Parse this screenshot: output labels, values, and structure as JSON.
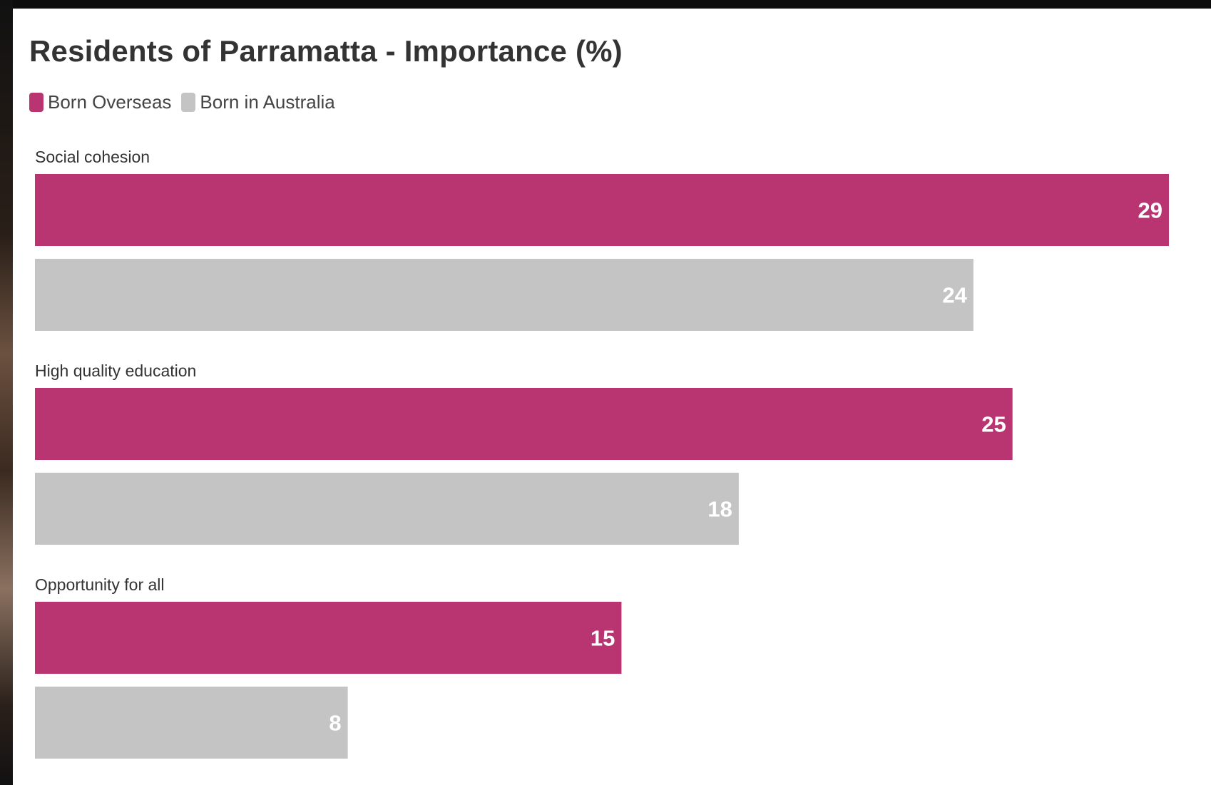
{
  "chart_data": {
    "type": "bar",
    "orientation": "horizontal",
    "title": "Residents of Parramatta - Importance (%)",
    "categories": [
      "Social cohesion",
      "High quality education",
      "Opportunity for all"
    ],
    "series": [
      {
        "name": "Born Overseas",
        "color": "#b83572",
        "values": [
          29,
          25,
          15
        ]
      },
      {
        "name": "Born in Australia",
        "color": "#c4c4c4",
        "values": [
          24,
          18,
          8
        ]
      }
    ],
    "xlim": [
      0,
      29
    ],
    "grid": false,
    "legend": "top-left",
    "data_labels": true
  }
}
